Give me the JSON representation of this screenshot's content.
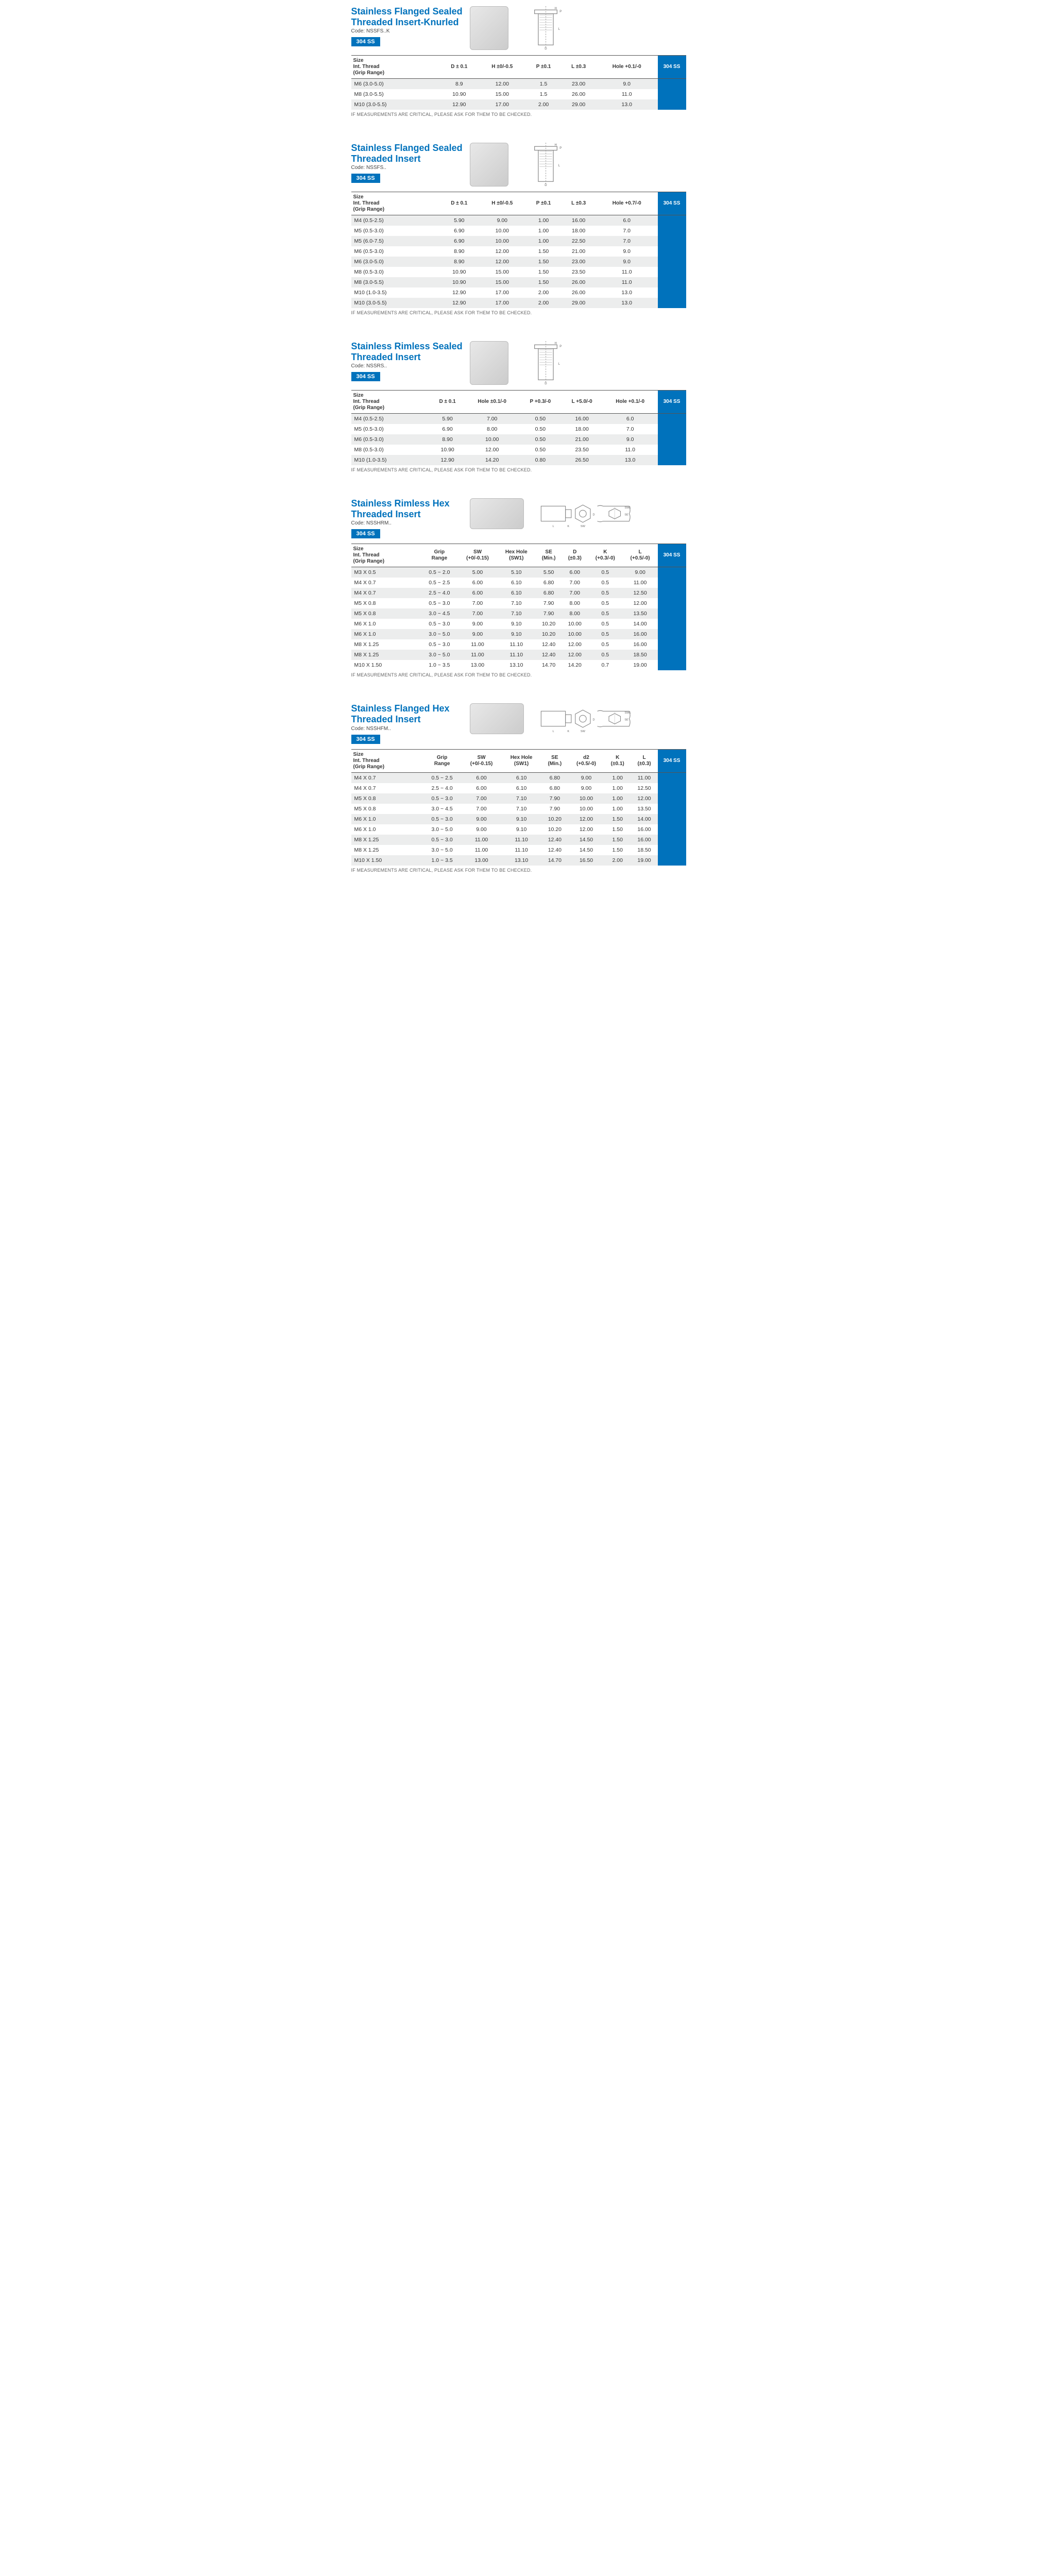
{
  "footnote": "IF MEASUREMENTS ARE CRITICAL, PLEASE ASK FOR THEM TO BE CHECKED.",
  "badge": "304 SS",
  "sizeHeaderLines": [
    "Size",
    "Int. Thread",
    "(Grip Range)"
  ],
  "sections": [
    {
      "title": "Stainless Flanged Sealed Threaded Insert-Knurled",
      "code": "Code: NSSFS..K",
      "photoClass": "photo",
      "diag": "cyl",
      "cols": [
        "D ± 0.1",
        "H ±0/-0.5",
        "P ±0.1",
        "L ±0.3",
        "Hole +0.1/-0"
      ],
      "rows": [
        [
          "M6 (3.0-5.0)",
          "8.9",
          "12.00",
          "1.5",
          "23.00",
          "9.0"
        ],
        [
          "M8 (3.0-5.5)",
          "10.90",
          "15.00",
          "1.5",
          "26.00",
          "11.0"
        ],
        [
          "M10 (3.0-5.5)",
          "12.90",
          "17.00",
          "2.00",
          "29.00",
          "13.0"
        ]
      ]
    },
    {
      "title": "Stainless Flanged Sealed Threaded Insert",
      "code": "Code: NSSFS..",
      "photoClass": "photo",
      "diag": "cyl",
      "cols": [
        "D ± 0.1",
        "H ±0/-0.5",
        "P ±0.1",
        "L ±0.3",
        "Hole +0.7/-0"
      ],
      "rows": [
        [
          "M4 (0.5-2.5)",
          "5.90",
          "9.00",
          "1.00",
          "16.00",
          "6.0"
        ],
        [
          "M5 (0.5-3.0)",
          "6.90",
          "10.00",
          "1.00",
          "18.00",
          "7.0"
        ],
        [
          "M5 (6.0-7.5)",
          "6.90",
          "10.00",
          "1.00",
          "22.50",
          "7.0"
        ],
        [
          "M6 (0.5-3.0)",
          "8.90",
          "12.00",
          "1.50",
          "21.00",
          "9.0"
        ],
        [
          "M6 (3.0-5.0)",
          "8.90",
          "12.00",
          "1.50",
          "23.00",
          "9.0"
        ],
        [
          "M8 (0.5-3.0)",
          "10.90",
          "15.00",
          "1.50",
          "23.50",
          "11.0"
        ],
        [
          "M8 (3.0-5.5)",
          "10.90",
          "15.00",
          "1.50",
          "26.00",
          "11.0"
        ],
        [
          "M10 (1.0-3.5)",
          "12.90",
          "17.00",
          "2.00",
          "26.00",
          "13.0"
        ],
        [
          "M10 (3.0-5.5)",
          "12.90",
          "17.00",
          "2.00",
          "29.00",
          "13.0"
        ]
      ]
    },
    {
      "title": "Stainless Rimless Sealed Threaded Insert",
      "code": "Code: NSSRS..",
      "photoClass": "photo",
      "diag": "cyl",
      "cols": [
        "D ± 0.1",
        "Hole ±0.1/-0",
        "P +0.3/-0",
        "L +5.0/-0",
        "Hole +0.1/-0"
      ],
      "rows": [
        [
          "M4 (0.5-2.5)",
          "5.90",
          "7.00",
          "0.50",
          "16.00",
          "6.0"
        ],
        [
          "M5 (0.5-3.0)",
          "6.90",
          "8.00",
          "0.50",
          "18.00",
          "7.0"
        ],
        [
          "M6 (0.5-3.0)",
          "8.90",
          "10.00",
          "0.50",
          "21.00",
          "9.0"
        ],
        [
          "M8 (0.5-3.0)",
          "10.90",
          "12.00",
          "0.50",
          "23.50",
          "11.0"
        ],
        [
          "M10 (1.0-3.5)",
          "12.90",
          "14.20",
          "0.80",
          "26.50",
          "13.0"
        ]
      ]
    },
    {
      "title": "Stainless Rimless Hex Threaded Insert",
      "code": "Code: NSSHRM..",
      "photoClass": "photo wide",
      "diag": "hex",
      "sizeOnly": true,
      "cols": [
        "Grip\nRange",
        "SW\n(+0/-0.15)",
        "Hex Hole\n(SW1)",
        "SE\n(Min.)",
        "D\n(±0.3)",
        "K\n(+0.3/-0)",
        "L\n(+0.5/-0)"
      ],
      "rows": [
        [
          "M3 X 0.5",
          "0.5 ~ 2.0",
          "5.00",
          "5.10",
          "5.50",
          "6.00",
          "0.5",
          "9.00"
        ],
        [
          "M4 X 0.7",
          "0.5 ~ 2.5",
          "6.00",
          "6.10",
          "6.80",
          "7.00",
          "0.5",
          "11.00"
        ],
        [
          "M4 X 0.7",
          "2.5 ~ 4.0",
          "6.00",
          "6.10",
          "6.80",
          "7.00",
          "0.5",
          "12.50"
        ],
        [
          "M5 X 0.8",
          "0.5 ~ 3.0",
          "7.00",
          "7.10",
          "7.90",
          "8.00",
          "0.5",
          "12.00"
        ],
        [
          "M5 X 0.8",
          "3.0 ~ 4.5",
          "7.00",
          "7.10",
          "7.90",
          "8.00",
          "0.5",
          "13.50"
        ],
        [
          "M6 X 1.0",
          "0.5 ~ 3.0",
          "9.00",
          "9.10",
          "10.20",
          "10.00",
          "0.5",
          "14.00"
        ],
        [
          "M6 X 1.0",
          "3.0 ~ 5.0",
          "9.00",
          "9.10",
          "10.20",
          "10.00",
          "0.5",
          "16.00"
        ],
        [
          "M8 X 1.25",
          "0.5 ~ 3.0",
          "11.00",
          "11.10",
          "12.40",
          "12.00",
          "0.5",
          "16.00"
        ],
        [
          "M8 X 1.25",
          "3.0 ~ 5.0",
          "11.00",
          "11.10",
          "12.40",
          "12.00",
          "0.5",
          "18.50"
        ],
        [
          "M10 X 1.50",
          "1.0 ~ 3.5",
          "13.00",
          "13.10",
          "14.70",
          "14.20",
          "0.7",
          "19.00"
        ]
      ]
    },
    {
      "title": "Stainless Flanged Hex Threaded Insert",
      "code": "Code: NSSHFM..",
      "photoClass": "photo wide",
      "diag": "hex",
      "sizeOnly": true,
      "cols": [
        "Grip\nRange",
        "SW\n(+0/-0.15)",
        "Hex Hole\n(SW1)",
        "SE\n(Min.)",
        "d2\n(+0.5/-0)",
        "K\n(±0.1)",
        "L\n(±0.3)"
      ],
      "rows": [
        [
          "M4 X 0.7",
          "0.5 ~ 2.5",
          "6.00",
          "6.10",
          "6.80",
          "9.00",
          "1.00",
          "11.00"
        ],
        [
          "M4 X 0.7",
          "2.5 ~ 4.0",
          "6.00",
          "6.10",
          "6.80",
          "9.00",
          "1.00",
          "12.50"
        ],
        [
          "M5 X 0.8",
          "0.5 ~ 3.0",
          "7.00",
          "7.10",
          "7.90",
          "10.00",
          "1.00",
          "12.00"
        ],
        [
          "M5 X 0.8",
          "3.0 ~ 4.5",
          "7.00",
          "7.10",
          "7.90",
          "10.00",
          "1.00",
          "13.50"
        ],
        [
          "M6 X 1.0",
          "0.5 ~ 3.0",
          "9.00",
          "9.10",
          "10.20",
          "12.00",
          "1.50",
          "14.00"
        ],
        [
          "M6 X 1.0",
          "3.0 ~ 5.0",
          "9.00",
          "9.10",
          "10.20",
          "12.00",
          "1.50",
          "16.00"
        ],
        [
          "M8 X 1.25",
          "0.5 ~ 3.0",
          "11.00",
          "11.10",
          "12.40",
          "14.50",
          "1.50",
          "16.00"
        ],
        [
          "M8 X 1.25",
          "3.0 ~ 5.0",
          "11.00",
          "11.10",
          "12.40",
          "14.50",
          "1.50",
          "18.50"
        ],
        [
          "M10 X 1.50",
          "1.0 ~ 3.5",
          "13.00",
          "13.10",
          "14.70",
          "16.50",
          "2.00",
          "19.00"
        ]
      ]
    }
  ],
  "colors": {
    "brand": "#0072bc",
    "rowOdd": "#eceded"
  }
}
